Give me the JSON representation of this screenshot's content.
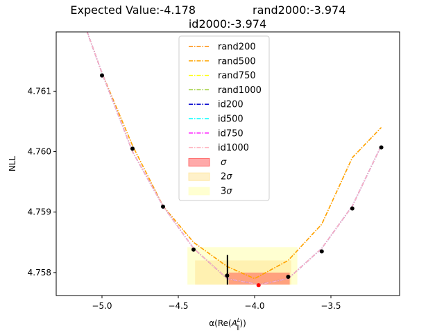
{
  "chart_data": {
    "type": "line",
    "title_line1_left": "Expected Value:-4.178",
    "title_line1_right": "rand2000:-3.974",
    "title_line2": "id2000:-3.974",
    "xlabel_prefix": "α(Re(",
    "xlabel_sym": "A",
    "xlabel_sup": "L",
    "xlabel_sub": "‖",
    "xlabel_suffix": "))",
    "ylabel": "NLL",
    "xlim": [
      -5.3,
      -3.05
    ],
    "ylim": [
      4.75762,
      4.76198
    ],
    "xticks": [
      -5.0,
      -4.5,
      -4.0,
      -3.5
    ],
    "xtick_labels": [
      "−5.0",
      "−4.5",
      "−4.0",
      "−3.5"
    ],
    "yticks": [
      4.758,
      4.759,
      4.76,
      4.761
    ],
    "ytick_labels": [
      "4.758",
      "4.759",
      "4.760",
      "4.761"
    ],
    "legend_position": "top-center",
    "series": [
      {
        "name": "rand200",
        "color": "#ff8c00",
        "x": [
          -5.1,
          -5.0,
          -4.8,
          -4.6,
          -4.4,
          -4.18,
          -4.0,
          -3.78,
          -3.56,
          -3.36,
          -3.17
        ],
        "y": [
          4.762,
          4.7613,
          4.7601,
          4.7591,
          4.7585,
          4.7581,
          4.7579,
          4.7582,
          4.7588,
          4.7599,
          4.7604
        ]
      },
      {
        "name": "rand500",
        "color": "#ffa500",
        "x": [
          -5.1,
          -5.0,
          -4.8,
          -4.6,
          -4.4,
          -4.18,
          -4.0,
          -3.78,
          -3.56,
          -3.36,
          -3.17
        ],
        "y": [
          4.762,
          4.7613,
          4.7601,
          4.7591,
          4.7585,
          4.7581,
          4.7579,
          4.7582,
          4.7588,
          4.7599,
          4.7604
        ]
      },
      {
        "name": "rand750",
        "color": "#ffff00",
        "x": [
          -5.1,
          -5.0,
          -4.8,
          -4.6,
          -4.4,
          -4.18,
          -3.97,
          -3.78,
          -3.56,
          -3.36,
          -3.17
        ],
        "y": [
          4.762,
          4.7613,
          4.76,
          4.7591,
          4.7584,
          4.7579,
          4.7578,
          4.7579,
          4.7584,
          4.7591,
          4.7601
        ]
      },
      {
        "name": "rand1000",
        "color": "#9acd32",
        "x": [
          -5.1,
          -5.0,
          -4.8,
          -4.6,
          -4.4,
          -4.18,
          -3.97,
          -3.78,
          -3.56,
          -3.36,
          -3.17
        ],
        "y": [
          4.762,
          4.7613,
          4.76,
          4.7591,
          4.7584,
          4.7579,
          4.7578,
          4.7579,
          4.7584,
          4.7591,
          4.7601
        ]
      },
      {
        "name": "id200",
        "color": "#0000cd",
        "x": [
          -5.1,
          -5.0,
          -4.8,
          -4.6,
          -4.4,
          -4.18,
          -3.97,
          -3.78,
          -3.56,
          -3.36,
          -3.17
        ],
        "y": [
          4.762,
          4.7613,
          4.76,
          4.7591,
          4.7584,
          4.7579,
          4.7578,
          4.7579,
          4.7584,
          4.7591,
          4.7601
        ]
      },
      {
        "name": "id500",
        "color": "#00ffff",
        "x": [
          -5.1,
          -5.0,
          -4.8,
          -4.6,
          -4.4,
          -4.18,
          -3.97,
          -3.78,
          -3.56,
          -3.36,
          -3.17
        ],
        "y": [
          4.762,
          4.7613,
          4.76,
          4.7591,
          4.7584,
          4.7579,
          4.7578,
          4.7579,
          4.7584,
          4.7591,
          4.7601
        ]
      },
      {
        "name": "id750",
        "color": "#ff00ff",
        "x": [
          -5.1,
          -5.0,
          -4.8,
          -4.6,
          -4.4,
          -4.18,
          -3.97,
          -3.78,
          -3.56,
          -3.36,
          -3.17
        ],
        "y": [
          4.762,
          4.7613,
          4.76,
          4.7591,
          4.7584,
          4.7579,
          4.7578,
          4.7579,
          4.7584,
          4.7591,
          4.7601
        ]
      },
      {
        "name": "id1000",
        "color": "#ffb6c1",
        "x": [
          -5.1,
          -5.0,
          -4.8,
          -4.6,
          -4.4,
          -4.18,
          -3.97,
          -3.78,
          -3.56,
          -3.36,
          -3.17
        ],
        "y": [
          4.762,
          4.7613,
          4.76,
          4.7591,
          4.7584,
          4.7579,
          4.7578,
          4.7579,
          4.7584,
          4.7591,
          4.7601
        ]
      }
    ],
    "points": {
      "x": [
        -5.0,
        -4.8,
        -4.6,
        -4.4,
        -4.18,
        -3.78,
        -3.56,
        -3.36,
        -3.17
      ],
      "y": [
        4.76126,
        4.76005,
        4.75909,
        4.75838,
        4.75795,
        4.75793,
        4.75835,
        4.75906,
        4.76007
      ],
      "color": "#000000"
    },
    "minimum_point": {
      "x": -3.974,
      "y": 4.75779,
      "color": "#ff0000"
    },
    "error_bar": {
      "x": -4.178,
      "ymin": 4.7578,
      "ymax": 4.75829,
      "color": "#000000"
    },
    "bands": [
      {
        "name": "3σ",
        "label_base": "3",
        "color": "#ffffcc",
        "opacity": 0.9,
        "xmin": -4.44,
        "xmax": -3.72,
        "ymin": 4.7578,
        "ymax": 4.75842
      },
      {
        "name": "2σ",
        "label_base": "2",
        "color": "#ffe08a",
        "opacity": 0.45,
        "xmin": -4.39,
        "xmax": -3.76,
        "ymin": 4.7578,
        "ymax": 4.7582
      },
      {
        "name": "σ",
        "label_base": "",
        "color": "#ff4040",
        "opacity": 0.45,
        "xmin": -4.17,
        "xmax": -3.77,
        "ymin": 4.7578,
        "ymax": 4.758
      }
    ],
    "legend_order": [
      "rand200",
      "rand500",
      "rand750",
      "rand1000",
      "id200",
      "id500",
      "id750",
      "id1000",
      "σ",
      "2σ",
      "3σ"
    ]
  }
}
